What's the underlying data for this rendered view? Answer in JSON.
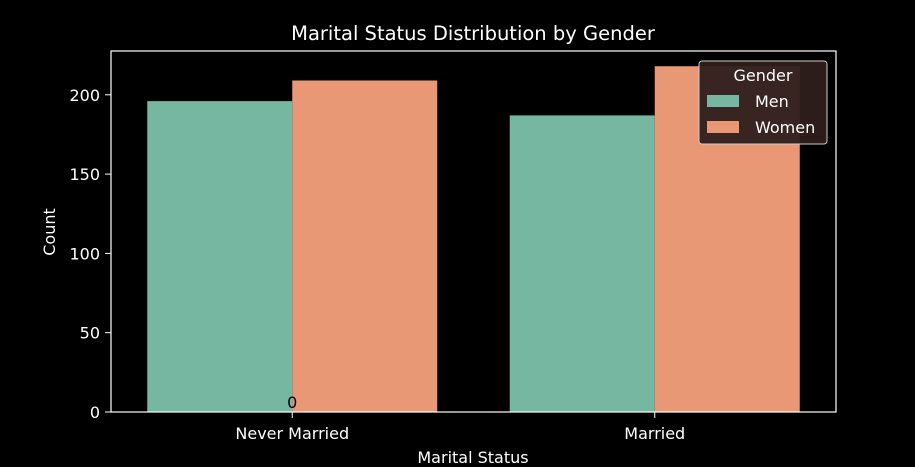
{
  "chart_data": {
    "type": "bar",
    "title": "Marital Status Distribution by Gender",
    "xlabel": "Marital Status",
    "ylabel": "Count",
    "categories": [
      "Never Married",
      "Married"
    ],
    "series": [
      {
        "name": "Men",
        "values": [
          196,
          187
        ],
        "color": "#76b7a2"
      },
      {
        "name": "Women",
        "values": [
          209,
          218
        ],
        "color": "#e99876"
      }
    ],
    "ylim": [
      0,
      227.6
    ],
    "yticks": [
      0,
      50,
      100,
      150,
      200
    ],
    "legend": {
      "title": "Gender",
      "position": "top-right"
    },
    "annotation": {
      "text": "0",
      "category_index": 0
    },
    "grid": false,
    "colors": {
      "background": "#000000",
      "text": "#ffffff",
      "axis": "#ffffff",
      "legend_bg": "#2e1f1c",
      "annotation_text": "#000000"
    }
  }
}
